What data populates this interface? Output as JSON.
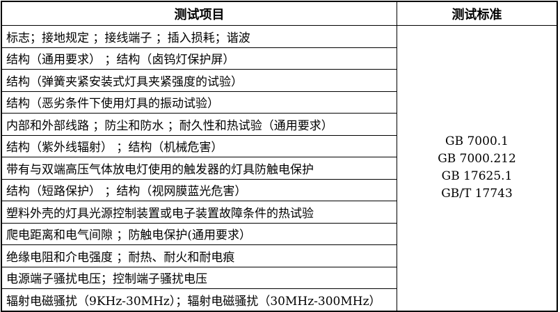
{
  "table": {
    "headers": [
      "测试项目",
      "测试标准"
    ],
    "items": [
      "标志；接地规定 ；接线端子 ；插入损耗；谐波",
      "结构（通用要求） ；结构（卤钨灯保护屏）",
      "结构（弹簧夹紧安装式灯具夹紧强度的试验）",
      "结构（恶劣条件下使用灯具的振动试验）",
      "内部和外部线路 ；防尘和防水 ；耐久性和热试验（通用要求）",
      "结构（紫外线辐射） ；结构（机械危害）",
      "带有与双端高压气体放电灯使用的触发器的灯具防触电保护",
      "结构（短路保护） ；结构（视网膜蓝光危害）",
      "塑料外壳的灯具光源控制装置或电子装置故障条件的热试验",
      "爬电距离和电气间隙 ；防触电保护(通用要求）",
      "绝缘电阻和介电强度 ；耐热、耐火和耐电痕",
      "电源端子骚扰电压；控制端子骚扰电压",
      "辐射电磁骚扰（9KHz-30MHz）；辐射电磁骚扰（30MHz-300MHz）"
    ],
    "standards": [
      "GB 7000.1",
      "GB 7000.212",
      "GB 17625.1",
      "GB/T 17743"
    ]
  }
}
